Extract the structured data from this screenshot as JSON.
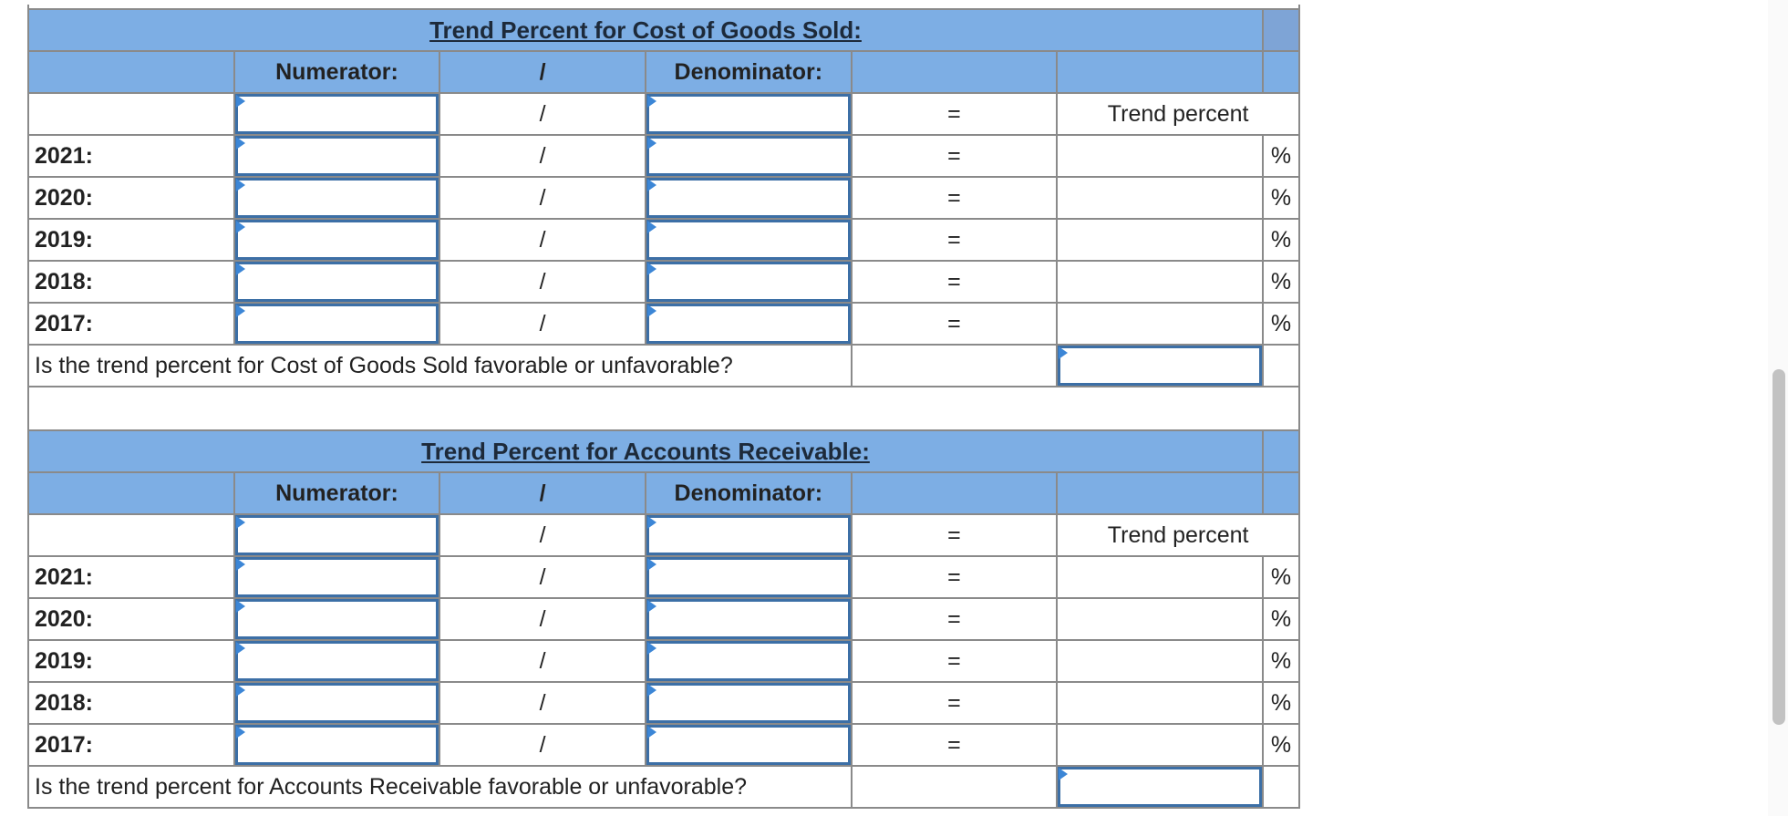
{
  "sections": [
    {
      "title": "Trend Percent for Cost of Goods Sold:",
      "numerator_label": "Numerator:",
      "slash": "/",
      "denominator_label": "Denominator:",
      "equals": "=",
      "result_label": "Trend percent",
      "pct": "%",
      "rows": [
        {
          "year": "2021:"
        },
        {
          "year": "2020:"
        },
        {
          "year": "2019:"
        },
        {
          "year": "2018:"
        },
        {
          "year": "2017:"
        }
      ],
      "question": "Is the trend percent for Cost of Goods Sold favorable or unfavorable?"
    },
    {
      "title": "Trend Percent for Accounts Receivable:",
      "numerator_label": "Numerator:",
      "slash": "/",
      "denominator_label": "Denominator:",
      "equals": "=",
      "result_label": "Trend percent",
      "pct": "%",
      "rows": [
        {
          "year": "2021:"
        },
        {
          "year": "2020:"
        },
        {
          "year": "2019:"
        },
        {
          "year": "2018:"
        },
        {
          "year": "2017:"
        }
      ],
      "question": "Is the trend percent for Accounts Receivable favorable or unfavorable?"
    }
  ]
}
